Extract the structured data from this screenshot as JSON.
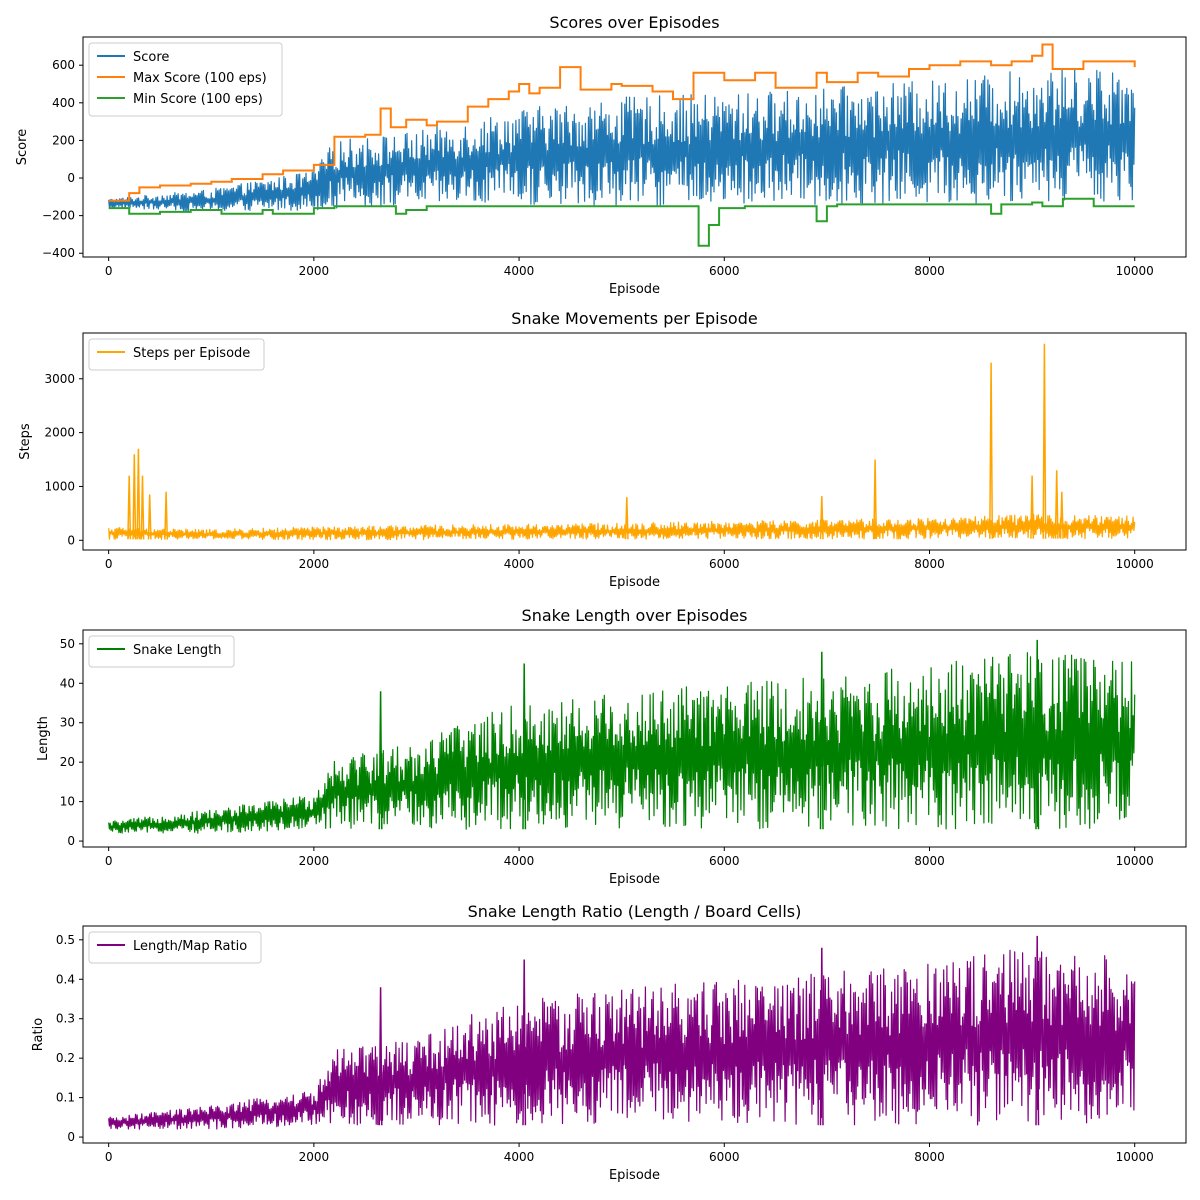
{
  "chart_data": [
    {
      "type": "line",
      "title": "Scores over Episodes",
      "xlabel": "Episode",
      "ylabel": "Score",
      "xlim": [
        -250,
        10500
      ],
      "ylim": [
        -420,
        750
      ],
      "xticks": [
        0,
        2000,
        4000,
        6000,
        8000,
        10000
      ],
      "yticks": [
        -400,
        -200,
        0,
        200,
        400,
        600
      ],
      "legend_position": "top-left",
      "grid": false,
      "series": [
        {
          "name": "Score",
          "color": "#1f77b4",
          "style": "noisy-band",
          "x": [
            0,
            1000,
            2000,
            2200,
            3000,
            4000,
            5000,
            6000,
            7000,
            8000,
            9000,
            10000
          ],
          "upper": [
            -110,
            -60,
            40,
            200,
            250,
            370,
            430,
            450,
            480,
            520,
            580,
            600
          ],
          "lower": [
            -160,
            -180,
            -170,
            -160,
            -150,
            -150,
            -150,
            -150,
            -140,
            -140,
            -130,
            -120
          ]
        },
        {
          "name": "Max Score (100 eps)",
          "color": "#ff7f0e",
          "style": "step",
          "x": [
            0,
            200,
            300,
            500,
            800,
            1000,
            1200,
            1500,
            1700,
            2000,
            2200,
            2500,
            2650,
            2750,
            2900,
            3100,
            3200,
            3500,
            3700,
            3900,
            4000,
            4100,
            4200,
            4400,
            4600,
            4900,
            5000,
            5300,
            5500,
            5700,
            6000,
            6300,
            6500,
            6900,
            7000,
            7300,
            7500,
            7800,
            8000,
            8300,
            8600,
            8800,
            9000,
            9100,
            9200,
            9500,
            10000
          ],
          "values": [
            -120,
            -80,
            -50,
            -40,
            -30,
            -20,
            -5,
            20,
            40,
            70,
            220,
            230,
            370,
            270,
            310,
            280,
            300,
            380,
            420,
            460,
            500,
            450,
            480,
            590,
            470,
            500,
            490,
            460,
            420,
            560,
            520,
            560,
            480,
            560,
            510,
            560,
            540,
            580,
            600,
            620,
            600,
            620,
            650,
            710,
            580,
            620,
            590
          ]
        },
        {
          "name": "Min Score (100 eps)",
          "color": "#2ca02c",
          "style": "step",
          "x": [
            0,
            200,
            500,
            800,
            1100,
            1500,
            1600,
            2000,
            2200,
            2800,
            2900,
            3100,
            5700,
            5750,
            5850,
            5950,
            6200,
            6900,
            7000,
            7100,
            8000,
            8600,
            8700,
            9000,
            9100,
            9300,
            9600,
            10000
          ],
          "values": [
            -160,
            -190,
            -180,
            -170,
            -190,
            -170,
            -190,
            -160,
            -150,
            -190,
            -170,
            -150,
            -150,
            -360,
            -250,
            -160,
            -150,
            -230,
            -150,
            -140,
            -140,
            -190,
            -140,
            -130,
            -150,
            -110,
            -150,
            -150
          ]
        }
      ]
    },
    {
      "type": "line",
      "title": "Snake Movements per Episode",
      "xlabel": "Episode",
      "ylabel": "Steps",
      "xlim": [
        -250,
        10500
      ],
      "ylim": [
        -180,
        3850
      ],
      "xticks": [
        0,
        2000,
        4000,
        6000,
        8000,
        10000
      ],
      "yticks": [
        0,
        1000,
        2000,
        3000
      ],
      "legend_position": "top-left",
      "grid": false,
      "series": [
        {
          "name": "Steps per Episode",
          "color": "#ffa500",
          "style": "noisy-band",
          "x": [
            0,
            1000,
            2000,
            3000,
            4000,
            5000,
            6000,
            7000,
            8000,
            9000,
            10000
          ],
          "upper": [
            250,
            200,
            250,
            280,
            300,
            320,
            360,
            380,
            420,
            480,
            450
          ],
          "lower": [
            20,
            10,
            10,
            10,
            20,
            20,
            20,
            20,
            30,
            30,
            30
          ],
          "spikes": [
            [
              200,
              1200
            ],
            [
              250,
              1600
            ],
            [
              290,
              1700
            ],
            [
              330,
              1200
            ],
            [
              400,
              850
            ],
            [
              560,
              900
            ],
            [
              5050,
              800
            ],
            [
              6950,
              820
            ],
            [
              7470,
              1500
            ],
            [
              8600,
              3300
            ],
            [
              9000,
              1200
            ],
            [
              9120,
              3650
            ],
            [
              9240,
              1300
            ],
            [
              9290,
              900
            ]
          ]
        }
      ]
    },
    {
      "type": "line",
      "title": "Snake Length over Episodes",
      "xlabel": "Episode",
      "ylabel": "Length",
      "xlim": [
        -250,
        10500
      ],
      "ylim": [
        -1.5,
        53.5
      ],
      "xticks": [
        0,
        2000,
        4000,
        6000,
        8000,
        10000
      ],
      "yticks": [
        0,
        10,
        20,
        30,
        40,
        50
      ],
      "legend_position": "top-left",
      "grid": false,
      "series": [
        {
          "name": "Snake Length",
          "color": "#008000",
          "style": "noisy-band",
          "x": [
            0,
            1000,
            2000,
            2200,
            3000,
            3400,
            4000,
            5000,
            6000,
            7000,
            8000,
            9000,
            10000
          ],
          "upper": [
            5,
            8,
            12,
            22,
            25,
            30,
            35,
            38,
            40,
            42,
            45,
            48,
            46
          ],
          "lower": [
            2,
            2,
            3,
            3,
            3,
            3,
            3,
            3,
            3,
            3,
            3,
            3,
            3
          ],
          "spikes": [
            [
              2650,
              38
            ],
            [
              4050,
              45
            ],
            [
              6950,
              48
            ],
            [
              9050,
              51
            ]
          ]
        }
      ]
    },
    {
      "type": "line",
      "title": "Snake Length Ratio (Length / Board Cells)",
      "xlabel": "Episode",
      "ylabel": "Ratio",
      "xlim": [
        -250,
        10500
      ],
      "ylim": [
        -0.015,
        0.535
      ],
      "xticks": [
        0,
        2000,
        4000,
        6000,
        8000,
        10000
      ],
      "yticks": [
        0.0,
        0.1,
        0.2,
        0.3,
        0.4,
        0.5
      ],
      "legend_position": "top-left",
      "grid": false,
      "series": [
        {
          "name": "Length/Map Ratio",
          "color": "#800080",
          "style": "noisy-band",
          "x": [
            0,
            1000,
            2000,
            2200,
            3000,
            3400,
            4000,
            5000,
            6000,
            7000,
            8000,
            9000,
            10000
          ],
          "upper": [
            0.05,
            0.08,
            0.12,
            0.22,
            0.25,
            0.3,
            0.35,
            0.38,
            0.4,
            0.42,
            0.45,
            0.48,
            0.46
          ],
          "lower": [
            0.02,
            0.02,
            0.03,
            0.03,
            0.03,
            0.03,
            0.03,
            0.03,
            0.03,
            0.03,
            0.03,
            0.03,
            0.03
          ],
          "spikes": [
            [
              2650,
              0.38
            ],
            [
              4050,
              0.45
            ],
            [
              6950,
              0.48
            ],
            [
              9050,
              0.51
            ]
          ]
        }
      ]
    }
  ]
}
